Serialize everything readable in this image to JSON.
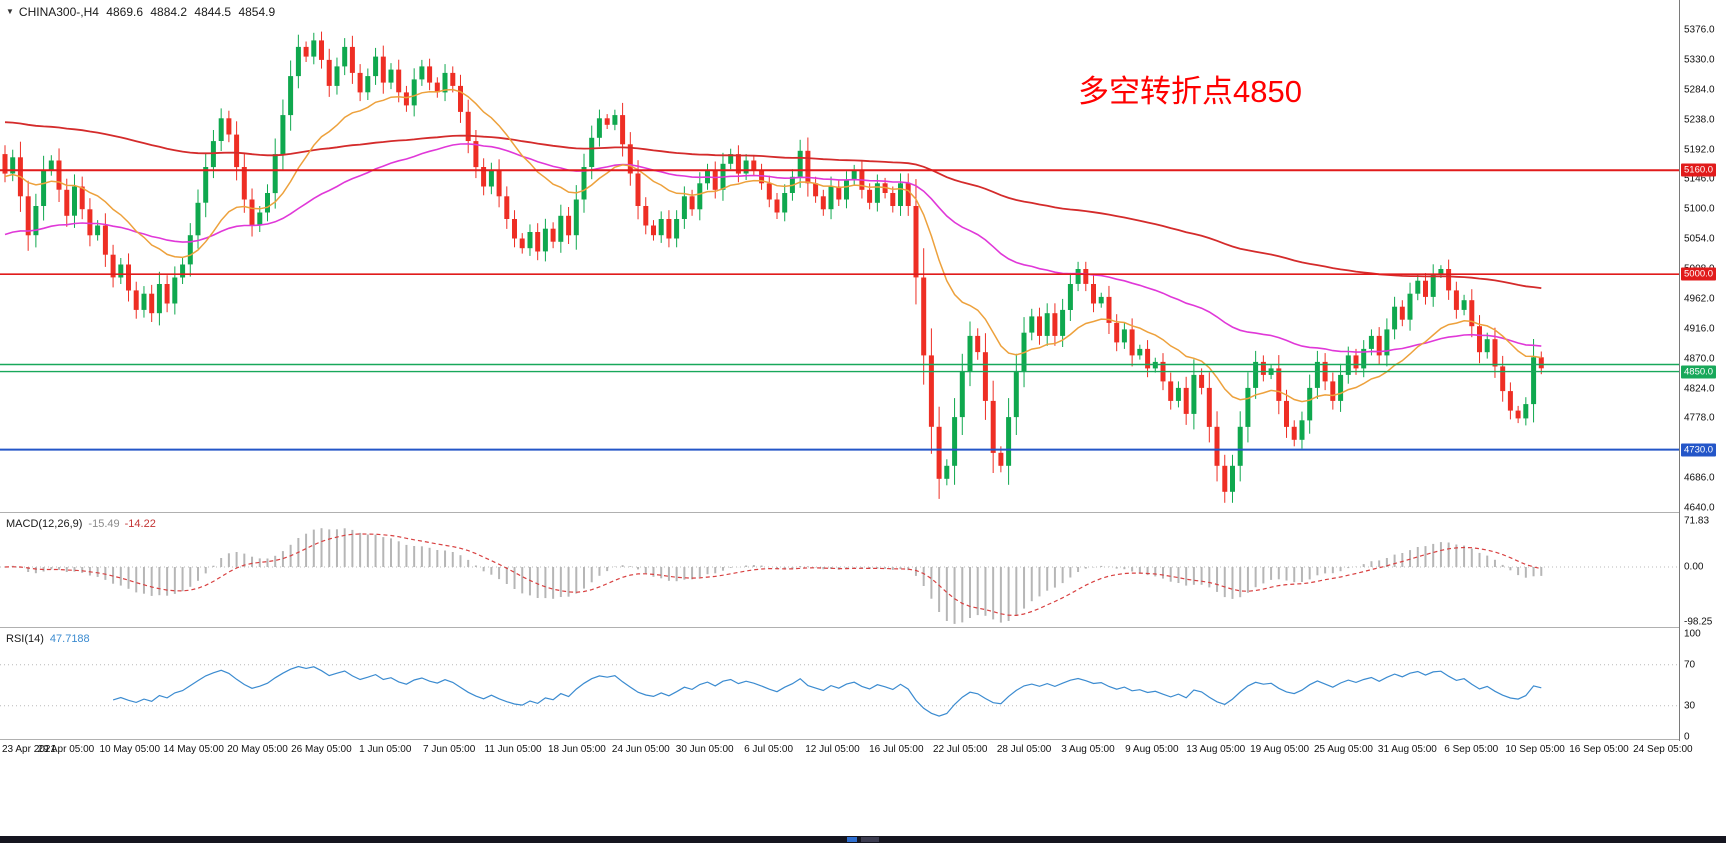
{
  "header": {
    "collapse_icon": "▼",
    "symbol": "CHINA300-,H4",
    "open": "4869.6",
    "high": "4884.2",
    "low": "4844.5",
    "close": "4854.9"
  },
  "annotation": {
    "text": "多空转折点4850",
    "color": "#ff0000"
  },
  "colors": {
    "bull": "#0fa84e",
    "bear": "#ee2e24",
    "ma_fast": "#eda13c",
    "ma_mid": "#e038d8",
    "ma_slow": "#d42b2b",
    "macd_hist": "#b6b6b6",
    "macd_signal": "#d84040",
    "rsi_line": "#3b8bd0",
    "level_red": "#e11b1b",
    "level_green": "#18a85a",
    "level_blue": "#2456c8"
  },
  "chart_data": {
    "type": "candlestick",
    "title": "CHINA300- H4 candlestick chart with MACD and RSI",
    "timeframe": "H4",
    "x_labels": [
      "23 Apr 2021",
      "29 Apr 05:00",
      "10 May 05:00",
      "14 May 05:00",
      "20 May 05:00",
      "26 May 05:00",
      "1 Jun 05:00",
      "7 Jun 05:00",
      "11 Jun 05:00",
      "18 Jun 05:00",
      "24 Jun 05:00",
      "30 Jun 05:00",
      "6 Jul 05:00",
      "12 Jul 05:00",
      "16 Jul 05:00",
      "22 Jul 05:00",
      "28 Jul 05:00",
      "3 Aug 05:00",
      "9 Aug 05:00",
      "13 Aug 05:00",
      "19 Aug 05:00",
      "25 Aug 05:00",
      "31 Aug 05:00",
      "6 Sep 05:00",
      "10 Sep 05:00",
      "16 Sep 05:00",
      "24 Sep 05:00"
    ],
    "y_axis_labels": [
      "5376.0",
      "5330.0",
      "5284.0",
      "5238.0",
      "5192.0",
      "5146.0",
      "5100.0",
      "5054.0",
      "5008.0",
      "4962.0",
      "4916.0",
      "4870.0",
      "4824.0",
      "4778.0",
      "4732.0",
      "4686.0",
      "4640.0"
    ],
    "y_range": [
      4640.0,
      5376.0
    ],
    "last_ohlc": {
      "open": 4869.6,
      "high": 4884.2,
      "low": 4844.5,
      "close": 4854.9
    },
    "first_open": 5185,
    "candles_close": [
      5155,
      5180,
      5120,
      5060,
      5105,
      5160,
      5175,
      5130,
      5090,
      5135,
      5100,
      5060,
      5075,
      5030,
      4995,
      5015,
      4975,
      4945,
      4970,
      4940,
      4985,
      4955,
      4995,
      5015,
      5060,
      5110,
      5165,
      5205,
      5240,
      5215,
      5165,
      5115,
      5075,
      5095,
      5125,
      5185,
      5245,
      5305,
      5350,
      5335,
      5360,
      5330,
      5290,
      5320,
      5350,
      5310,
      5280,
      5305,
      5335,
      5295,
      5315,
      5280,
      5260,
      5300,
      5320,
      5295,
      5280,
      5310,
      5290,
      5250,
      5205,
      5165,
      5135,
      5160,
      5120,
      5085,
      5055,
      5040,
      5065,
      5035,
      5070,
      5050,
      5090,
      5060,
      5115,
      5165,
      5210,
      5240,
      5230,
      5245,
      5200,
      5155,
      5105,
      5075,
      5060,
      5085,
      5055,
      5085,
      5120,
      5100,
      5140,
      5160,
      5130,
      5170,
      5185,
      5155,
      5175,
      5160,
      5140,
      5115,
      5095,
      5125,
      5150,
      5190,
      5140,
      5120,
      5100,
      5135,
      5115,
      5145,
      5160,
      5130,
      5110,
      5140,
      5125,
      5105,
      5140,
      5105,
      4995,
      4875,
      4765,
      4685,
      4705,
      4780,
      4850,
      4905,
      4880,
      4805,
      4725,
      4705,
      4780,
      4850,
      4910,
      4935,
      4905,
      4940,
      4905,
      4945,
      4985,
      5008,
      4985,
      4955,
      4965,
      4925,
      4895,
      4915,
      4875,
      4885,
      4855,
      4865,
      4835,
      4805,
      4825,
      4785,
      4845,
      4825,
      4765,
      4705,
      4665,
      4705,
      4765,
      4825,
      4865,
      4845,
      4855,
      4805,
      4765,
      4745,
      4775,
      4825,
      4865,
      4835,
      4805,
      4845,
      4875,
      4855,
      4885,
      4905,
      4875,
      4915,
      4950,
      4930,
      4970,
      4990,
      4965,
      5000,
      5008,
      4975,
      4945,
      4960,
      4920,
      4880,
      4900,
      4858,
      4820,
      4790,
      4778,
      4800,
      4872,
      4855
    ],
    "hlines": [
      {
        "price": 5160.0,
        "color": "#e11b1b",
        "width": 2,
        "tag": "5160.0"
      },
      {
        "price": 5000.0,
        "color": "#e11b1b",
        "width": 1.6,
        "tag": "5000.0"
      },
      {
        "price": 4861.0,
        "color": "#18a85a",
        "width": 1.4
      },
      {
        "price": 4850.0,
        "color": "#18a85a",
        "width": 1.4,
        "tag": "4850.0"
      },
      {
        "price": 4730.0,
        "color": "#2456c8",
        "width": 2,
        "tag": "4730.0"
      }
    ],
    "moving_averages": [
      {
        "name": "ma-slow",
        "color": "#d42b2b",
        "width": 1.8,
        "alpha": 0.012,
        "seed": 5235
      },
      {
        "name": "ma-mid",
        "color": "#e038d8",
        "width": 1.6,
        "alpha": 0.032,
        "seed": 5058
      },
      {
        "name": "ma-fast",
        "color": "#eda13c",
        "width": 1.5,
        "alpha": 0.1,
        "seed": 5150
      }
    ],
    "macd": {
      "label": "MACD(12,26,9)",
      "value_main": "-15.49",
      "value_signal": "-14.22",
      "fast": 12,
      "slow": 26,
      "signal": 9,
      "axis_labels": [
        "71.83",
        "0.00",
        "-98.25"
      ]
    },
    "rsi": {
      "label": "RSI(14)",
      "value": "47.7188",
      "period": 14,
      "levels": [
        70,
        30
      ],
      "axis_labels": [
        "100",
        "70",
        "30",
        "0"
      ]
    }
  }
}
